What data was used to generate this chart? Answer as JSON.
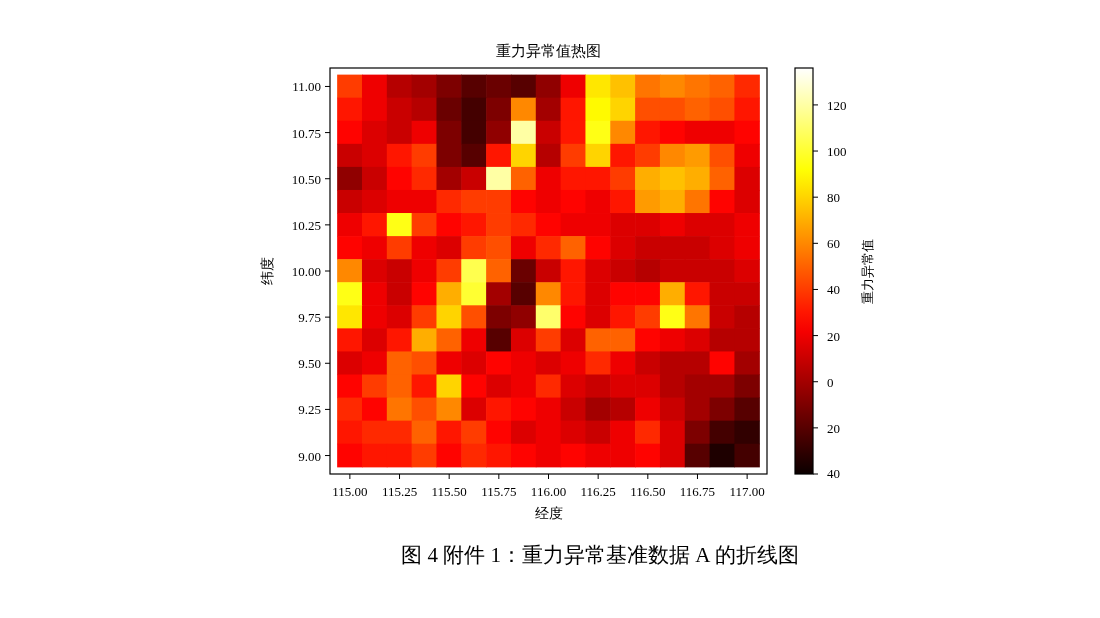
{
  "chart_data": {
    "type": "scatter",
    "title": "重力异常值热图",
    "xlabel": "经度",
    "ylabel": "纬度",
    "clabel": "重力异常值",
    "annotations": [
      "图 4 附件 1：重力异常基准数据 A 的折线图"
    ],
    "marker": "square",
    "xlim": [
      114.9,
      117.1
    ],
    "ylim": [
      8.9,
      11.1
    ],
    "clim": [
      -40,
      136
    ],
    "xticks": [
      {
        "value": 115,
        "label": "115.00"
      },
      {
        "value": 115.25,
        "label": "115.25"
      },
      {
        "value": 115.5,
        "label": "115.50"
      },
      {
        "value": 115.75,
        "label": "115.75"
      },
      {
        "value": 116,
        "label": "116.00"
      },
      {
        "value": 116.25,
        "label": "116.25"
      },
      {
        "value": 116.5,
        "label": "116.50"
      },
      {
        "value": 116.75,
        "label": "116.75"
      },
      {
        "value": 117,
        "label": "117.00"
      }
    ],
    "yticks": [
      {
        "value": 9,
        "label": "9.00"
      },
      {
        "value": 9.25,
        "label": "9.25"
      },
      {
        "value": 9.5,
        "label": "9.50"
      },
      {
        "value": 9.75,
        "label": "9.75"
      },
      {
        "value": 10,
        "label": "10.00"
      },
      {
        "value": 10.25,
        "label": "10.25"
      },
      {
        "value": 10.5,
        "label": "10.50"
      },
      {
        "value": 10.75,
        "label": "10.75"
      },
      {
        "value": 11,
        "label": "11.00"
      }
    ],
    "cticks": [
      {
        "value": -40,
        "label": "40"
      },
      {
        "value": -20,
        "label": "20"
      },
      0,
      20,
      40,
      60,
      80,
      100,
      120
    ],
    "x": [
      115,
      115.125,
      115.25,
      115.375,
      115.5,
      115.625,
      115.75,
      115.875,
      116,
      116.125,
      116.25,
      116.375,
      116.5,
      116.625,
      116.75,
      116.875,
      117,
      115,
      115.125,
      115.25,
      115.375,
      115.5,
      115.625,
      115.75,
      115.875,
      116,
      116.125,
      116.25,
      116.375,
      116.5,
      116.625,
      116.75,
      116.875,
      117,
      115,
      115.125,
      115.25,
      115.375,
      115.5,
      115.625,
      115.75,
      115.875,
      116,
      116.125,
      116.25,
      116.375,
      116.5,
      116.625,
      116.75,
      116.875,
      117,
      115,
      115.125,
      115.25,
      115.375,
      115.5,
      115.625,
      115.75,
      115.875,
      116,
      116.125,
      116.25,
      116.375,
      116.5,
      116.625,
      116.75,
      116.875,
      117,
      115,
      115.125,
      115.25,
      115.375,
      115.5,
      115.625,
      115.75,
      115.875,
      116,
      116.125,
      116.25,
      116.375,
      116.5,
      116.625,
      116.75,
      116.875,
      117,
      115,
      115.125,
      115.25,
      115.375,
      115.5,
      115.625,
      115.75,
      115.875,
      116,
      116.125,
      116.25,
      116.375,
      116.5,
      116.625,
      116.75,
      116.875,
      117,
      115,
      115.125,
      115.25,
      115.375,
      115.5,
      115.625,
      115.75,
      115.875,
      116,
      116.125,
      116.25,
      116.375,
      116.5,
      116.625,
      116.75,
      116.875,
      117,
      115,
      115.125,
      115.25,
      115.375,
      115.5,
      115.625,
      115.75,
      115.875,
      116,
      116.125,
      116.25,
      116.375,
      116.5,
      116.625,
      116.75,
      116.875,
      117,
      115,
      115.125,
      115.25,
      115.375,
      115.5,
      115.625,
      115.75,
      115.875,
      116,
      116.125,
      116.25,
      116.375,
      116.5,
      116.625,
      116.75,
      116.875,
      117,
      115,
      115.125,
      115.25,
      115.375,
      115.5,
      115.625,
      115.75,
      115.875,
      116,
      116.125,
      116.25,
      116.375,
      116.5,
      116.625,
      116.75,
      116.875,
      117,
      115,
      115.125,
      115.25,
      115.375,
      115.5,
      115.625,
      115.75,
      115.875,
      116,
      116.125,
      116.25,
      116.375,
      116.5,
      116.625,
      116.75,
      116.875,
      117,
      115,
      115.125,
      115.25,
      115.375,
      115.5,
      115.625,
      115.75,
      115.875,
      116,
      116.125,
      116.25,
      116.375,
      116.5,
      116.625,
      116.75,
      116.875,
      117,
      115,
      115.125,
      115.25,
      115.375,
      115.5,
      115.625,
      115.75,
      115.875,
      116,
      116.125,
      116.25,
      116.375,
      116.5,
      116.625,
      116.75,
      116.875,
      117,
      115,
      115.125,
      115.25,
      115.375,
      115.5,
      115.625,
      115.75,
      115.875,
      116,
      116.125,
      116.25,
      116.375,
      116.5,
      116.625,
      116.75,
      116.875,
      117,
      115,
      115.125,
      115.25,
      115.375,
      115.5,
      115.625,
      115.75,
      115.875,
      116,
      116.125,
      116.25,
      116.375,
      116.5,
      116.625,
      116.75,
      116.875,
      117,
      115,
      115.125,
      115.25,
      115.375,
      115.5,
      115.625,
      115.75,
      115.875,
      116,
      116.125,
      116.25,
      116.375,
      116.5,
      116.625,
      116.75,
      116.875,
      117,
      115,
      115.125,
      115.25,
      115.375,
      115.5,
      115.625,
      115.75,
      115.875,
      116,
      116.125,
      116.25,
      116.375,
      116.5,
      116.625,
      116.75,
      116.875,
      117
    ],
    "values": [
      11,
      11,
      11,
      11,
      11,
      11,
      11,
      11,
      11,
      11,
      11,
      11,
      11,
      11,
      11,
      11,
      11,
      10.875,
      10.875,
      10.875,
      10.875,
      10.875,
      10.875,
      10.875,
      10.875,
      10.875,
      10.875,
      10.875,
      10.875,
      10.875,
      10.875,
      10.875,
      10.875,
      10.875,
      10.75,
      10.75,
      10.75,
      10.75,
      10.75,
      10.75,
      10.75,
      10.75,
      10.75,
      10.75,
      10.75,
      10.75,
      10.75,
      10.75,
      10.75,
      10.75,
      10.75,
      10.625,
      10.625,
      10.625,
      10.625,
      10.625,
      10.625,
      10.625,
      10.625,
      10.625,
      10.625,
      10.625,
      10.625,
      10.625,
      10.625,
      10.625,
      10.625,
      10.625,
      10.5,
      10.5,
      10.5,
      10.5,
      10.5,
      10.5,
      10.5,
      10.5,
      10.5,
      10.5,
      10.5,
      10.5,
      10.5,
      10.5,
      10.5,
      10.5,
      10.5,
      10.375,
      10.375,
      10.375,
      10.375,
      10.375,
      10.375,
      10.375,
      10.375,
      10.375,
      10.375,
      10.375,
      10.375,
      10.375,
      10.375,
      10.375,
      10.375,
      10.375,
      10.25,
      10.25,
      10.25,
      10.25,
      10.25,
      10.25,
      10.25,
      10.25,
      10.25,
      10.25,
      10.25,
      10.25,
      10.25,
      10.25,
      10.25,
      10.25,
      10.25,
      10.125,
      10.125,
      10.125,
      10.125,
      10.125,
      10.125,
      10.125,
      10.125,
      10.125,
      10.125,
      10.125,
      10.125,
      10.125,
      10.125,
      10.125,
      10.125,
      10.125,
      10,
      10,
      10,
      10,
      10,
      10,
      10,
      10,
      10,
      10,
      10,
      10,
      10,
      10,
      10,
      10,
      10,
      9.875,
      9.875,
      9.875,
      9.875,
      9.875,
      9.875,
      9.875,
      9.875,
      9.875,
      9.875,
      9.875,
      9.875,
      9.875,
      9.875,
      9.875,
      9.875,
      9.875,
      9.75,
      9.75,
      9.75,
      9.75,
      9.75,
      9.75,
      9.75,
      9.75,
      9.75,
      9.75,
      9.75,
      9.75,
      9.75,
      9.75,
      9.75,
      9.75,
      9.75,
      9.625,
      9.625,
      9.625,
      9.625,
      9.625,
      9.625,
      9.625,
      9.625,
      9.625,
      9.625,
      9.625,
      9.625,
      9.625,
      9.625,
      9.625,
      9.625,
      9.625,
      9.5,
      9.5,
      9.5,
      9.5,
      9.5,
      9.5,
      9.5,
      9.5,
      9.5,
      9.5,
      9.5,
      9.5,
      9.5,
      9.5,
      9.5,
      9.5,
      9.5,
      9.375,
      9.375,
      9.375,
      9.375,
      9.375,
      9.375,
      9.375,
      9.375,
      9.375,
      9.375,
      9.375,
      9.375,
      9.375,
      9.375,
      9.375,
      9.375,
      9.375,
      9.25,
      9.25,
      9.25,
      9.25,
      9.25,
      9.25,
      9.25,
      9.25,
      9.25,
      9.25,
      9.25,
      9.25,
      9.25,
      9.25,
      9.25,
      9.25,
      9.25,
      9.125,
      9.125,
      9.125,
      9.125,
      9.125,
      9.125,
      9.125,
      9.125,
      9.125,
      9.125,
      9.125,
      9.125,
      9.125,
      9.125,
      9.125,
      9.125,
      9.125,
      9,
      9,
      9,
      9,
      9,
      9,
      9,
      9,
      9,
      9,
      9,
      9,
      9,
      9,
      9,
      9,
      9
    ],
    "cvalues": [
      40,
      20,
      5,
      0,
      -10,
      -20,
      -15,
      -20,
      -5,
      20,
      85,
      75,
      55,
      60,
      55,
      50,
      35,
      30,
      20,
      10,
      5,
      -15,
      -25,
      -10,
      60,
      0,
      30,
      90,
      80,
      45,
      45,
      50,
      45,
      30,
      25,
      15,
      10,
      20,
      -10,
      -25,
      -5,
      120,
      10,
      30,
      95,
      60,
      30,
      25,
      20,
      20,
      25,
      10,
      15,
      30,
      40,
      -10,
      -20,
      30,
      80,
      5,
      40,
      80,
      30,
      40,
      60,
      65,
      45,
      20,
      -5,
      10,
      25,
      35,
      0,
      10,
      120,
      50,
      20,
      30,
      30,
      40,
      70,
      75,
      70,
      50,
      15,
      10,
      15,
      20,
      20,
      35,
      40,
      40,
      25,
      20,
      25,
      20,
      30,
      65,
      70,
      55,
      25,
      15,
      20,
      30,
      95,
      40,
      25,
      30,
      40,
      35,
      25,
      20,
      20,
      15,
      15,
      20,
      15,
      15,
      20,
      25,
      20,
      40,
      20,
      15,
      40,
      45,
      20,
      35,
      50,
      25,
      15,
      10,
      10,
      10,
      15,
      20,
      60,
      15,
      10,
      20,
      40,
      105,
      50,
      -15,
      10,
      30,
      15,
      10,
      5,
      10,
      10,
      10,
      15,
      95,
      20,
      10,
      25,
      70,
      100,
      0,
      -20,
      60,
      30,
      15,
      25,
      25,
      70,
      30,
      10,
      10,
      85,
      20,
      15,
      40,
      80,
      45,
      -10,
      -5,
      110,
      25,
      15,
      30,
      40,
      95,
      55,
      10,
      5,
      30,
      15,
      30,
      70,
      50,
      20,
      -20,
      15,
      40,
      15,
      50,
      50,
      25,
      20,
      15,
      5,
      5,
      15,
      20,
      50,
      45,
      20,
      15,
      25,
      20,
      15,
      20,
      35,
      20,
      10,
      5,
      5,
      25,
      0,
      25,
      40,
      50,
      30,
      80,
      25,
      15,
      20,
      35,
      15,
      10,
      15,
      15,
      5,
      0,
      0,
      -10,
      35,
      25,
      55,
      45,
      60,
      15,
      30,
      25,
      20,
      10,
      0,
      5,
      20,
      10,
      0,
      -10,
      -20,
      30,
      35,
      35,
      50,
      30,
      40,
      25,
      15,
      20,
      15,
      10,
      20,
      35,
      15,
      -10,
      -25,
      -30,
      25,
      30,
      30,
      40,
      25,
      35,
      30,
      25,
      20,
      25,
      20,
      20,
      25,
      15,
      -20,
      -35,
      -25
    ]
  }
}
